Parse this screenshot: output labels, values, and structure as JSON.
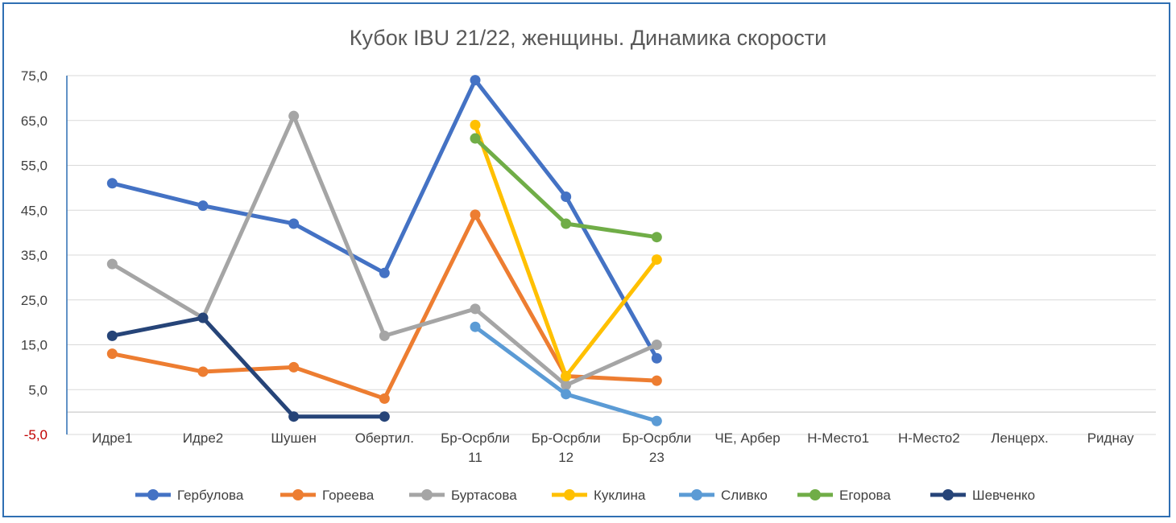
{
  "chart_data": {
    "type": "line",
    "title": "Кубок IBU 21/22, женщины. Динамика скорости",
    "xlabel": "",
    "ylabel": "",
    "ylim": [
      -5,
      75
    ],
    "yticks": [
      "75,0",
      "65,0",
      "55,0",
      "45,0",
      "35,0",
      "25,0",
      "15,0",
      "5,0",
      "-5,0"
    ],
    "categories": [
      [
        "Идре1"
      ],
      [
        "Идре2"
      ],
      [
        "Шушен"
      ],
      [
        "Обертил."
      ],
      [
        "Бр-Осрбли",
        "11"
      ],
      [
        "Бр-Осрбли",
        "12"
      ],
      [
        "Бр-Осрбли",
        "23"
      ],
      [
        "ЧЕ, Арбер"
      ],
      [
        "Н-Место1"
      ],
      [
        "Н-Место2"
      ],
      [
        "Ленцерх."
      ],
      [
        "Риднау"
      ]
    ],
    "legend_position": "bottom",
    "grid": true,
    "series": [
      {
        "name": "Гербулова",
        "color": "#4472c4",
        "values": [
          51,
          46,
          42,
          31,
          74,
          48,
          12,
          null,
          null,
          null,
          null,
          null
        ]
      },
      {
        "name": "Гореева",
        "color": "#ed7d31",
        "values": [
          13,
          9,
          10,
          3,
          44,
          8,
          7,
          null,
          null,
          null,
          null,
          null
        ]
      },
      {
        "name": "Буртасова",
        "color": "#a5a5a5",
        "values": [
          33,
          21,
          66,
          17,
          23,
          6,
          15,
          null,
          null,
          null,
          null,
          null
        ]
      },
      {
        "name": "Куклина",
        "color": "#ffc000",
        "values": [
          null,
          null,
          null,
          null,
          64,
          8,
          34,
          null,
          null,
          null,
          null,
          null
        ]
      },
      {
        "name": "Сливко",
        "color": "#5b9bd5",
        "values": [
          null,
          null,
          null,
          null,
          19,
          4,
          -2,
          null,
          null,
          null,
          null,
          null
        ]
      },
      {
        "name": "Егорова",
        "color": "#70ad47",
        "values": [
          null,
          null,
          null,
          null,
          61,
          42,
          39,
          null,
          null,
          null,
          null,
          null
        ]
      },
      {
        "name": "Шевченко",
        "color": "#264478",
        "values": [
          17,
          21,
          -1,
          -1,
          null,
          null,
          null,
          null,
          null,
          null,
          null,
          null
        ]
      }
    ]
  }
}
